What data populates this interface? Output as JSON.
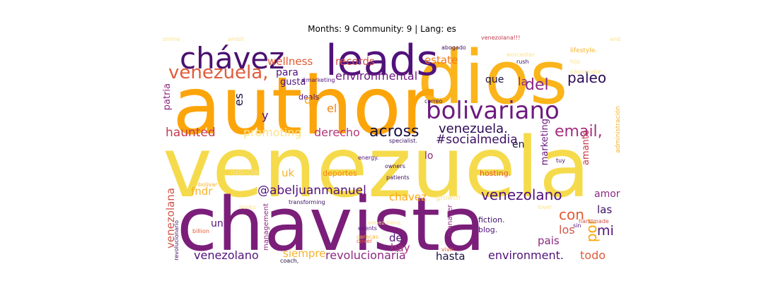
{
  "header": {
    "title": "Months: 9 Community: 9 | Lang: es"
  },
  "palette": {
    "dark_purple": "#51127c",
    "magenta": "#8c2981",
    "red": "#d2544a",
    "orange": "#f78311",
    "amber": "#fca50a",
    "yellow": "#f5db4c",
    "pale_yellow": "#fbe28a",
    "black": "#1b1042"
  },
  "wordcloud": {
    "words": [
      "author",
      "dios",
      "venezuela",
      "chavista",
      "leads",
      "chávez",
      "bolivariano",
      "venezuela,",
      "del",
      "paleo",
      "email,",
      "across",
      "venezuela.",
      "#socialmedia",
      "es",
      "haunted",
      "promoting",
      "derecho",
      "environmental",
      "la",
      "que",
      "records",
      "estate",
      "wellness",
      "para",
      "gusta",
      "deals",
      "patria",
      "y",
      "q",
      "el",
      "en",
      "marketing",
      "amante",
      "uk",
      "justicia",
      "deportes",
      "lo",
      "fndr",
      "@abeljuanmanuel",
      "chavez",
      "venezolano",
      "amor",
      "las",
      "mi",
      "con",
      "por",
      "los",
      "pais",
      "venezolana",
      "un",
      "de",
      "hay",
      "management",
      "venezolano",
      "siempre",
      "revolucionaria",
      "hasta",
      "environment.",
      "todo",
      "fiction.",
      "blog.",
      "manager",
      "events",
      "caracas",
      "cover",
      "vivir",
      "coach,",
      "revolucionario",
      "billion",
      "hosting.",
      "handmade",
      "sin",
      "growth",
      "energy.",
      "owners",
      "patients",
      "specialist.",
      "transforming",
      "bolivar",
      "correo",
      "administración",
      "tuy",
      "hijo",
      "rush",
      "worcester",
      "passionate",
      "lifestyle.",
      "and",
      "abogado",
      "venezolana!!!",
      "ambit",
      "online",
      "#marketing",
      "lover",
      "venezolano,",
      "books"
    ]
  }
}
